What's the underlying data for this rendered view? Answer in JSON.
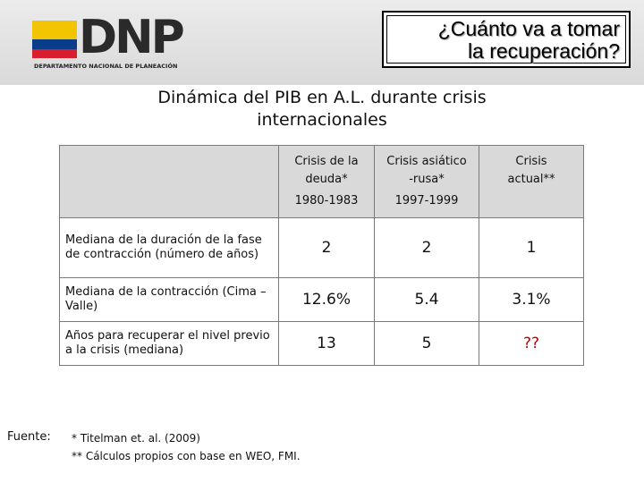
{
  "header": {
    "logo_text": "DNP",
    "logo_subtitle": "DEPARTAMENTO NACIONAL DE PLANEACIÓN",
    "title_line1": "¿Cuánto va a tomar",
    "title_line2": "la recuperación?"
  },
  "subtitle_line1": "Dinámica del PIB en A.L. durante crisis",
  "subtitle_line2": "internacionales",
  "table": {
    "columns": [
      {
        "line1": "Crisis de la",
        "line2": "deuda*",
        "line3": "1980-1983"
      },
      {
        "line1": "Crisis asiático",
        "line2": "-rusa*",
        "line3": "1997-1999"
      },
      {
        "line1": "Crisis",
        "line2": "actual**",
        "line3": ""
      }
    ],
    "rows": [
      {
        "label": "Mediana de la duración de la fase de contracción (número de años)",
        "values": [
          "2",
          "2",
          "1"
        ]
      },
      {
        "label": "Mediana de la contracción (Cima – Valle)",
        "values": [
          "12.6%",
          "5.4",
          "3.1%"
        ]
      },
      {
        "label": "Años para recuperar el nivel previo a la crisis (mediana)",
        "values": [
          "13",
          "5",
          "??"
        ]
      }
    ]
  },
  "footer": {
    "source_label": "Fuente:",
    "note1": "* Titelman et. al. (2009)",
    "note2": "** Cálculos propios con base en WEO, FMI."
  },
  "colors": {
    "flag_yellow": "#f2c500",
    "flag_blue": "#0a3c8c",
    "flag_red": "#d81e2c",
    "unknown_value": "#c00000"
  }
}
